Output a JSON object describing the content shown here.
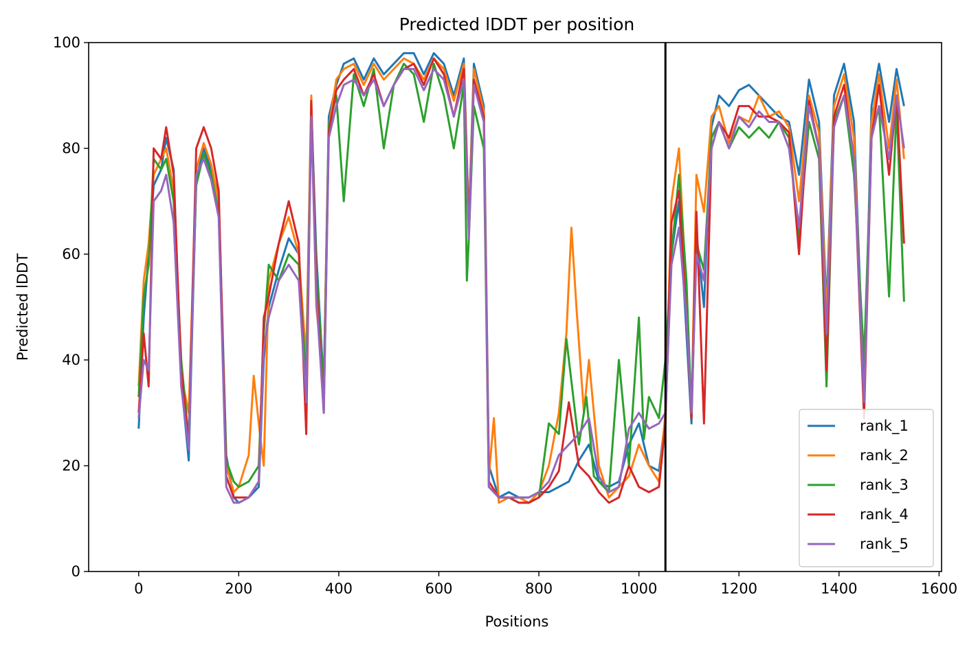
{
  "chart_data": {
    "type": "line",
    "title": "Predicted lDDT per position",
    "xlabel": "Positions",
    "ylabel": "Predicted lDDT",
    "xlim": [
      -100,
      1605
    ],
    "ylim": [
      0,
      100
    ],
    "xticks": [
      0,
      200,
      400,
      600,
      800,
      1000,
      1200,
      1400,
      1600
    ],
    "yticks": [
      0,
      20,
      40,
      60,
      80,
      100
    ],
    "grid": false,
    "legend_position": "lower right",
    "chain_boundary_x": 1053,
    "series": [
      {
        "name": "rank_1",
        "color": "#1f77b4",
        "x": [
          0,
          10,
          20,
          30,
          45,
          55,
          70,
          85,
          100,
          115,
          130,
          145,
          160,
          175,
          190,
          200,
          220,
          240,
          250,
          260,
          280,
          300,
          320,
          335,
          345,
          355,
          370,
          380,
          395,
          410,
          430,
          450,
          470,
          490,
          510,
          530,
          550,
          570,
          590,
          610,
          630,
          650,
          660,
          670,
          690,
          700,
          720,
          740,
          760,
          780,
          800,
          820,
          840,
          860,
          880,
          900,
          920,
          940,
          960,
          980,
          1000,
          1020,
          1040,
          1053,
          1065,
          1080,
          1095,
          1105,
          1115,
          1130,
          1145,
          1160,
          1180,
          1200,
          1220,
          1240,
          1260,
          1280,
          1300,
          1320,
          1340,
          1360,
          1375,
          1390,
          1410,
          1430,
          1450,
          1465,
          1480,
          1500,
          1515,
          1530
        ],
        "y": [
          27,
          48,
          60,
          73,
          76,
          82,
          76,
          36,
          21,
          74,
          80,
          76,
          71,
          22,
          14,
          13,
          14,
          16,
          40,
          50,
          57,
          63,
          60,
          34,
          88,
          60,
          35,
          86,
          92,
          96,
          97,
          93,
          97,
          94,
          96,
          98,
          98,
          94,
          98,
          96,
          90,
          97,
          66,
          96,
          88,
          20,
          14,
          15,
          14,
          14,
          15,
          15,
          16,
          17,
          21,
          24,
          17,
          16,
          17,
          24,
          28,
          20,
          19,
          29,
          60,
          70,
          45,
          28,
          64,
          50,
          84,
          90,
          88,
          91,
          92,
          90,
          88,
          86,
          85,
          75,
          93,
          85,
          50,
          90,
          96,
          85,
          33,
          88,
          96,
          85,
          95,
          88
        ]
      },
      {
        "name": "rank_2",
        "color": "#ff7f0e",
        "x": [
          0,
          10,
          20,
          30,
          45,
          55,
          70,
          85,
          100,
          115,
          130,
          145,
          160,
          175,
          190,
          200,
          220,
          230,
          240,
          250,
          260,
          280,
          300,
          320,
          335,
          345,
          355,
          370,
          380,
          395,
          410,
          430,
          450,
          470,
          490,
          510,
          530,
          550,
          570,
          590,
          610,
          630,
          650,
          660,
          670,
          690,
          700,
          710,
          720,
          740,
          760,
          780,
          800,
          820,
          840,
          855,
          865,
          875,
          890,
          900,
          920,
          940,
          960,
          980,
          1000,
          1020,
          1040,
          1053,
          1065,
          1080,
          1095,
          1105,
          1115,
          1130,
          1145,
          1160,
          1180,
          1200,
          1220,
          1240,
          1260,
          1280,
          1300,
          1320,
          1340,
          1360,
          1375,
          1390,
          1410,
          1430,
          1450,
          1465,
          1480,
          1500,
          1515,
          1530
        ],
        "y": [
          35,
          55,
          62,
          75,
          78,
          80,
          72,
          37,
          30,
          76,
          81,
          77,
          70,
          20,
          15,
          16,
          22,
          37,
          28,
          20,
          55,
          62,
          67,
          60,
          40,
          90,
          50,
          36,
          84,
          93,
          95,
          96,
          92,
          96,
          93,
          95,
          97,
          96,
          93,
          97,
          95,
          89,
          96,
          65,
          95,
          87,
          18,
          29,
          13,
          14,
          14,
          13,
          15,
          20,
          30,
          45,
          65,
          50,
          30,
          40,
          20,
          14,
          16,
          18,
          24,
          20,
          17,
          30,
          70,
          80,
          52,
          30,
          75,
          68,
          86,
          88,
          81,
          86,
          85,
          90,
          86,
          87,
          84,
          70,
          90,
          83,
          48,
          88,
          94,
          82,
          30,
          85,
          94,
          80,
          93,
          78
        ]
      },
      {
        "name": "rank_3",
        "color": "#2ca02c",
        "x": [
          0,
          10,
          20,
          30,
          45,
          55,
          70,
          85,
          100,
          115,
          130,
          145,
          160,
          175,
          190,
          200,
          220,
          240,
          250,
          260,
          280,
          300,
          320,
          335,
          345,
          355,
          370,
          380,
          395,
          410,
          430,
          450,
          470,
          490,
          510,
          530,
          550,
          570,
          590,
          610,
          630,
          650,
          656,
          660,
          670,
          690,
          700,
          720,
          740,
          760,
          780,
          800,
          820,
          840,
          855,
          865,
          880,
          895,
          910,
          920,
          940,
          960,
          980,
          1000,
          1010,
          1020,
          1040,
          1053,
          1065,
          1080,
          1095,
          1105,
          1115,
          1130,
          1145,
          1160,
          1180,
          1200,
          1220,
          1240,
          1260,
          1280,
          1300,
          1320,
          1340,
          1360,
          1375,
          1390,
          1410,
          1430,
          1450,
          1465,
          1480,
          1500,
          1515,
          1530
        ],
        "y": [
          33,
          52,
          58,
          78,
          76,
          78,
          70,
          40,
          25,
          73,
          79,
          75,
          68,
          21,
          17,
          16,
          17,
          20,
          45,
          58,
          55,
          60,
          58,
          36,
          87,
          58,
          34,
          84,
          90,
          70,
          94,
          88,
          95,
          80,
          92,
          96,
          94,
          85,
          96,
          90,
          80,
          92,
          55,
          63,
          88,
          80,
          16,
          14,
          14,
          13,
          13,
          14,
          28,
          26,
          44,
          36,
          24,
          33,
          18,
          17,
          15,
          40,
          20,
          48,
          25,
          33,
          29,
          40,
          60,
          75,
          55,
          30,
          62,
          57,
          82,
          85,
          80,
          84,
          82,
          84,
          82,
          85,
          82,
          63,
          85,
          78,
          35,
          85,
          90,
          75,
          40,
          82,
          88,
          52,
          88,
          51
        ]
      },
      {
        "name": "rank_4",
        "color": "#d62728",
        "x": [
          0,
          10,
          20,
          30,
          45,
          55,
          70,
          85,
          100,
          115,
          130,
          145,
          160,
          175,
          190,
          200,
          220,
          240,
          250,
          260,
          280,
          300,
          320,
          335,
          345,
          355,
          370,
          380,
          395,
          410,
          430,
          450,
          470,
          490,
          510,
          530,
          550,
          570,
          590,
          610,
          630,
          650,
          660,
          670,
          690,
          700,
          720,
          740,
          760,
          780,
          800,
          820,
          840,
          860,
          880,
          900,
          920,
          940,
          960,
          980,
          1000,
          1020,
          1040,
          1053,
          1065,
          1080,
          1095,
          1105,
          1115,
          1130,
          1145,
          1160,
          1180,
          1200,
          1220,
          1240,
          1260,
          1280,
          1300,
          1320,
          1340,
          1360,
          1375,
          1390,
          1410,
          1430,
          1450,
          1465,
          1480,
          1500,
          1515,
          1530
        ],
        "y": [
          30,
          45,
          35,
          80,
          78,
          84,
          75,
          38,
          24,
          80,
          84,
          80,
          72,
          18,
          14,
          14,
          14,
          17,
          48,
          52,
          62,
          70,
          62,
          26,
          89,
          55,
          30,
          83,
          91,
          93,
          95,
          90,
          94,
          88,
          92,
          95,
          96,
          92,
          97,
          94,
          86,
          95,
          64,
          93,
          86,
          17,
          14,
          14,
          13,
          13,
          14,
          16,
          19,
          32,
          20,
          18,
          15,
          13,
          14,
          20,
          16,
          15,
          16,
          28,
          66,
          72,
          48,
          29,
          68,
          28,
          80,
          85,
          82,
          88,
          88,
          86,
          86,
          85,
          83,
          60,
          89,
          80,
          38,
          86,
          92,
          78,
          29,
          82,
          92,
          75,
          90,
          62
        ]
      },
      {
        "name": "rank_5",
        "color": "#9467bd",
        "x": [
          0,
          10,
          20,
          30,
          45,
          55,
          70,
          85,
          100,
          115,
          130,
          145,
          160,
          175,
          190,
          200,
          220,
          240,
          250,
          260,
          280,
          300,
          320,
          335,
          345,
          355,
          370,
          380,
          395,
          410,
          430,
          450,
          470,
          490,
          510,
          530,
          550,
          570,
          590,
          610,
          630,
          650,
          660,
          670,
          690,
          700,
          720,
          740,
          760,
          780,
          800,
          820,
          840,
          860,
          880,
          900,
          920,
          940,
          960,
          980,
          1000,
          1020,
          1040,
          1053,
          1065,
          1080,
          1095,
          1105,
          1115,
          1130,
          1145,
          1160,
          1180,
          1200,
          1220,
          1240,
          1260,
          1280,
          1300,
          1320,
          1340,
          1360,
          1375,
          1390,
          1410,
          1430,
          1450,
          1465,
          1480,
          1500,
          1515,
          1530
        ],
        "y": [
          29,
          40,
          38,
          70,
          72,
          75,
          66,
          35,
          23,
          75,
          78,
          74,
          67,
          16,
          13,
          13,
          14,
          17,
          42,
          48,
          55,
          58,
          55,
          32,
          86,
          52,
          30,
          82,
          88,
          92,
          93,
          90,
          93,
          88,
          92,
          95,
          95,
          91,
          95,
          93,
          86,
          93,
          63,
          92,
          85,
          16,
          14,
          14,
          14,
          14,
          15,
          17,
          22,
          24,
          26,
          29,
          18,
          15,
          16,
          27,
          30,
          27,
          28,
          30,
          58,
          65,
          48,
          30,
          60,
          55,
          80,
          85,
          80,
          86,
          84,
          87,
          85,
          85,
          80,
          65,
          88,
          80,
          45,
          84,
          90,
          78,
          32,
          82,
          88,
          78,
          90,
          80
        ]
      }
    ]
  }
}
